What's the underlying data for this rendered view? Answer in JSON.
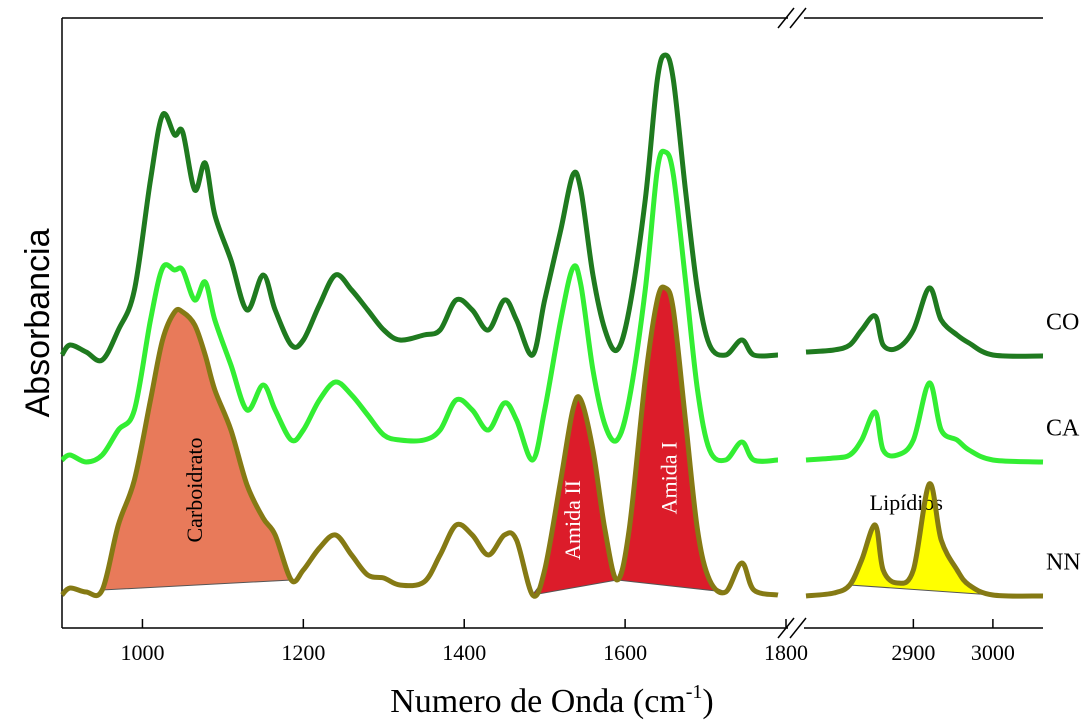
{
  "chart_data": {
    "type": "line",
    "xlabel": {
      "text": "Numero de Onda (cm",
      "sup": "-1",
      "tail": ")"
    },
    "ylabel": "Absorbancia",
    "x": [
      900,
      910,
      930,
      950,
      970,
      990,
      1010,
      1025,
      1040,
      1050,
      1065,
      1078,
      1090,
      1110,
      1130,
      1150,
      1165,
      1185,
      1200,
      1220,
      1240,
      1260,
      1280,
      1300,
      1320,
      1350,
      1370,
      1390,
      1410,
      1430,
      1450,
      1465,
      1485,
      1500,
      1520,
      1535,
      1545,
      1560,
      1575,
      1590,
      1605,
      1625,
      1640,
      1650,
      1660,
      1675,
      1690,
      1705,
      1725,
      1745,
      1760,
      1790,
      null,
      2765,
      2800,
      2820,
      2835,
      2852,
      2862,
      2880,
      2900,
      2920,
      2935,
      2955,
      2970,
      3000,
      3063
    ],
    "xlim": [
      [
        900,
        1800
      ],
      [
        2765,
        3063
      ]
    ],
    "xticks": [
      1000,
      1200,
      1400,
      1600,
      1800,
      2900,
      3000
    ],
    "ylim": [
      0,
      61
    ],
    "series": [
      {
        "name": "CO",
        "color": "#1f7a1f",
        "values": [
          27.3,
          28.3,
          27.6,
          26.8,
          29.8,
          33.8,
          44.8,
          51.3,
          49.3,
          49.6,
          43.8,
          46.5,
          41.3,
          36.8,
          31.8,
          35.3,
          31.8,
          28.3,
          28.8,
          32.3,
          35.3,
          33.8,
          31.8,
          29.8,
          28.8,
          29.3,
          29.8,
          32.8,
          31.8,
          29.8,
          32.8,
          30.8,
          27.3,
          32.8,
          39.8,
          45.3,
          43.8,
          35.3,
          29.8,
          27.8,
          31.8,
          42.8,
          54.8,
          57.3,
          54.8,
          43.8,
          33.8,
          28.3,
          27.3,
          28.8,
          27.3,
          27.3,
          null,
          27.6,
          27.8,
          28.3,
          29.8,
          31.2,
          28.3,
          28.0,
          29.8,
          34.0,
          30.8,
          29.3,
          28.5,
          27.3,
          27.2
        ]
      },
      {
        "name": "CA",
        "color": "#33ee33",
        "values": [
          16.8,
          17.3,
          16.6,
          17.3,
          19.8,
          21.8,
          30.8,
          36.0,
          35.8,
          35.8,
          32.8,
          34.6,
          30.8,
          26.3,
          21.8,
          24.3,
          21.8,
          18.8,
          19.8,
          22.8,
          24.6,
          23.3,
          21.3,
          19.3,
          18.8,
          18.8,
          19.8,
          22.8,
          21.8,
          19.8,
          22.5,
          20.8,
          16.8,
          21.8,
          30.8,
          36.0,
          34.3,
          25.8,
          20.3,
          18.8,
          22.8,
          33.8,
          45.8,
          47.6,
          45.3,
          34.8,
          23.8,
          17.8,
          16.8,
          18.6,
          16.8,
          16.8,
          null,
          16.8,
          17.0,
          17.3,
          18.8,
          21.6,
          17.8,
          17.3,
          18.8,
          24.5,
          19.8,
          18.8,
          17.8,
          16.8,
          16.6
        ]
      },
      {
        "name": "NN",
        "color": "#857a14",
        "values": [
          3.3,
          4.0,
          3.6,
          3.8,
          10.3,
          14.8,
          22.8,
          28.8,
          31.6,
          31.6,
          30.3,
          27.3,
          23.8,
          19.8,
          14.3,
          11.0,
          9.3,
          4.8,
          5.8,
          8.0,
          9.3,
          7.3,
          5.3,
          5.0,
          4.3,
          4.6,
          7.3,
          10.3,
          9.3,
          7.3,
          9.3,
          8.8,
          3.3,
          5.8,
          14.8,
          21.8,
          22.8,
          17.8,
          9.8,
          4.8,
          9.8,
          24.8,
          32.8,
          34.0,
          31.8,
          20.8,
          9.8,
          4.8,
          3.6,
          6.5,
          3.8,
          3.3,
          null,
          3.2,
          3.5,
          4.3,
          6.8,
          10.3,
          5.8,
          4.5,
          5.8,
          14.4,
          8.8,
          5.8,
          4.3,
          3.3,
          3.2
        ]
      }
    ],
    "bands": [
      {
        "label": "Carboidrato",
        "x_range": [
          950,
          1185
        ],
        "color": "#e87a5a",
        "label_color": "#000000",
        "vertical": true
      },
      {
        "label": "Amida II",
        "x_range": [
          1485,
          1590
        ],
        "color": "#dc1c2a",
        "label_color": "#ffffff",
        "vertical": true
      },
      {
        "label": "Amida I",
        "x_range": [
          1590,
          1725
        ],
        "color": "#dc1c2a",
        "label_color": "#ffffff",
        "vertical": true
      },
      {
        "label": "Lipídios",
        "x_range": [
          2820,
          3000
        ],
        "color": "#ffff00",
        "label_color": "#000000",
        "vertical": false
      }
    ]
  }
}
